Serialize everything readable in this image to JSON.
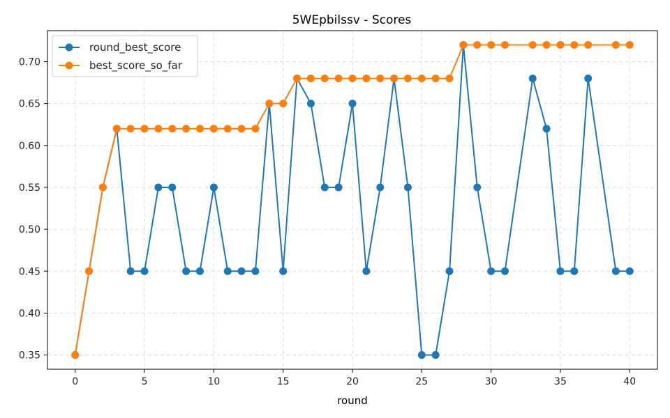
{
  "chart_data": {
    "type": "line",
    "title": "5WEpbilssv - Scores",
    "xlabel": "round",
    "ylabel": "",
    "xlim": [
      -2,
      42
    ],
    "ylim": [
      0.333,
      0.737
    ],
    "xticks": [
      0,
      5,
      10,
      15,
      20,
      25,
      30,
      35,
      40
    ],
    "yticks": [
      0.35,
      0.4,
      0.45,
      0.5,
      0.55,
      0.6,
      0.65,
      0.7
    ],
    "xtick_labels": [
      "0",
      "5",
      "10",
      "15",
      "20",
      "25",
      "30",
      "35",
      "40"
    ],
    "ytick_labels": [
      "0.35",
      "0.40",
      "0.45",
      "0.50",
      "0.55",
      "0.60",
      "0.65",
      "0.70"
    ],
    "grid": true,
    "legend_position": "top-left",
    "series": [
      {
        "name": "round_best_score",
        "color": "#1f77b4",
        "x": [
          0,
          1,
          2,
          3,
          4,
          5,
          6,
          7,
          8,
          9,
          10,
          11,
          12,
          13,
          14,
          15,
          16,
          17,
          18,
          19,
          20,
          21,
          22,
          23,
          24,
          25,
          26,
          27,
          28,
          29,
          30,
          31,
          33,
          34,
          35,
          36,
          37,
          39,
          40
        ],
        "y": [
          0.35,
          0.45,
          0.55,
          0.62,
          0.45,
          0.45,
          0.55,
          0.55,
          0.45,
          0.45,
          0.55,
          0.45,
          0.45,
          0.45,
          0.65,
          0.45,
          0.68,
          0.65,
          0.55,
          0.55,
          0.65,
          0.45,
          0.55,
          0.68,
          0.55,
          0.35,
          0.35,
          0.45,
          0.72,
          0.55,
          0.45,
          0.45,
          0.68,
          0.62,
          0.45,
          0.45,
          0.68,
          0.45,
          0.45
        ]
      },
      {
        "name": "best_score_so_far",
        "color": "#ff7f0e",
        "x": [
          0,
          1,
          2,
          3,
          4,
          5,
          6,
          7,
          8,
          9,
          10,
          11,
          12,
          13,
          14,
          15,
          16,
          17,
          18,
          19,
          20,
          21,
          22,
          23,
          24,
          25,
          26,
          27,
          28,
          29,
          30,
          31,
          33,
          34,
          35,
          36,
          37,
          39,
          40
        ],
        "y": [
          0.35,
          0.45,
          0.55,
          0.62,
          0.62,
          0.62,
          0.62,
          0.62,
          0.62,
          0.62,
          0.62,
          0.62,
          0.62,
          0.62,
          0.65,
          0.65,
          0.68,
          0.68,
          0.68,
          0.68,
          0.68,
          0.68,
          0.68,
          0.68,
          0.68,
          0.68,
          0.68,
          0.68,
          0.72,
          0.72,
          0.72,
          0.72,
          0.72,
          0.72,
          0.72,
          0.72,
          0.72,
          0.72,
          0.72
        ]
      }
    ]
  }
}
